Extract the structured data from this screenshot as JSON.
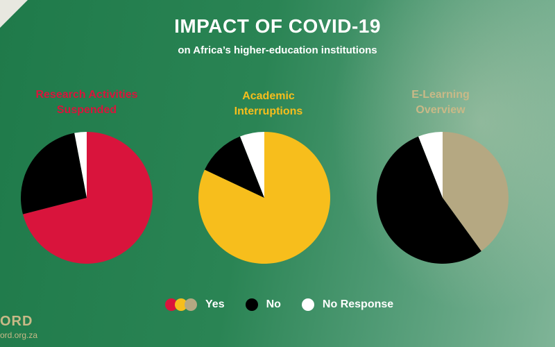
{
  "title": "IMPACT OF COVID-19",
  "subtitle": "on Africa’s higher-education institutions",
  "brand": "ORD",
  "url": "ord.org.za",
  "legend": {
    "yes": "Yes",
    "no": "No",
    "no_response": "No Response"
  },
  "colors": {
    "red": "#d9143c",
    "yellow": "#f7be1c",
    "tan": "#b5a882",
    "black": "#000000",
    "white": "#ffffff"
  },
  "chart_data": [
    {
      "type": "pie",
      "title": "Research Activities Suspended",
      "title_lines": [
        "Research Activities",
        "Suspended"
      ],
      "title_color": "#d9143c",
      "slices": [
        {
          "label": "Yes",
          "value": 71,
          "color": "#d9143c"
        },
        {
          "label": "No",
          "value": 26,
          "color": "#000000"
        },
        {
          "label": "No Response",
          "value": 3,
          "color": "#ffffff"
        }
      ]
    },
    {
      "type": "pie",
      "title": "Academic Interruptions",
      "title_lines": [
        "Academic",
        "Interruptions"
      ],
      "title_color": "#f7be1c",
      "slices": [
        {
          "label": "Yes",
          "value": 82,
          "color": "#f7be1c"
        },
        {
          "label": "No",
          "value": 12,
          "color": "#000000"
        },
        {
          "label": "No Response",
          "value": 6,
          "color": "#ffffff"
        }
      ]
    },
    {
      "type": "pie",
      "title": "E-Learning Overview",
      "title_lines": [
        "E-Learning",
        "Overview"
      ],
      "title_color": "#c9b987",
      "slices": [
        {
          "label": "Yes",
          "value": 40,
          "color": "#b5a882"
        },
        {
          "label": "No",
          "value": 54,
          "color": "#000000"
        },
        {
          "label": "No Response",
          "value": 6,
          "color": "#ffffff"
        }
      ]
    }
  ]
}
